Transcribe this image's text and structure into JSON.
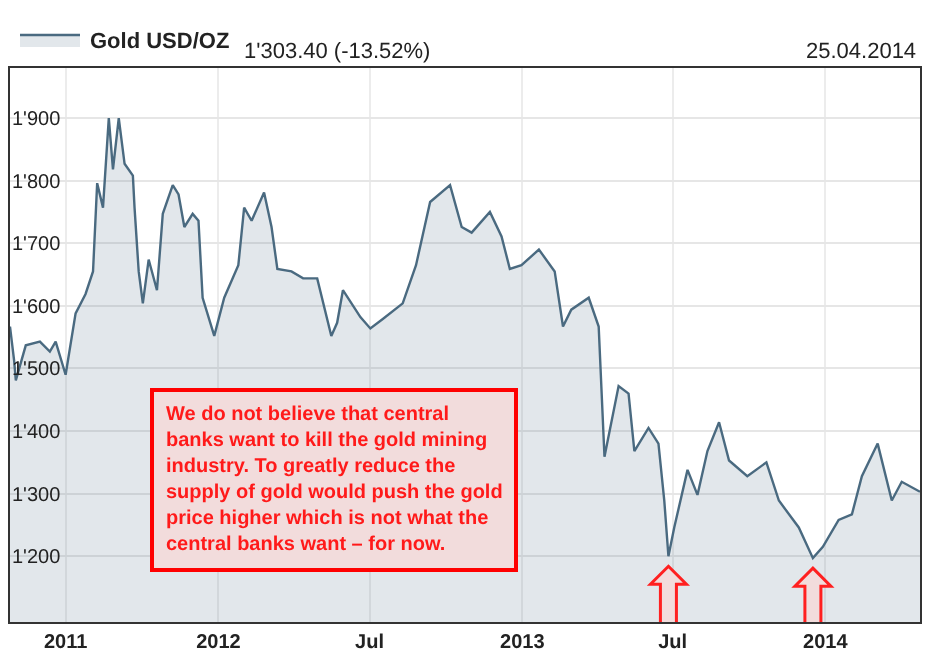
{
  "chart_data": {
    "type": "area",
    "annotations": [
      "1'303.40 (-13.52%)",
      "25.04.2014",
      "We do not believe that central banks want to kill the gold mining industry. To greatly reduce the supply of gold would push the gold price higher which is not what the central banks want – for now."
    ],
    "x": [
      "2011-04-25",
      "2011-04-30",
      "2011-05-02",
      "2011-05-14",
      "2011-05-31",
      "2011-06-12",
      "2011-06-19",
      "2011-07-01",
      "2011-07-13",
      "2011-07-25",
      "2011-08-03",
      "2011-08-08",
      "2011-08-15",
      "2011-08-22",
      "2011-08-27",
      "2011-09-03",
      "2011-09-10",
      "2011-09-20",
      "2011-09-22",
      "2011-09-27",
      "2011-10-02",
      "2011-10-09",
      "2011-10-19",
      "2011-10-26",
      "2011-11-07",
      "2011-11-14",
      "2011-11-21",
      "2011-12-01",
      "2011-12-08",
      "2011-12-13",
      "2011-12-27",
      "2012-01-08",
      "2012-01-25",
      "2012-02-01",
      "2012-02-10",
      "2012-02-25",
      "2012-03-05",
      "2012-03-12",
      "2012-03-29",
      "2012-04-12",
      "2012-04-29",
      "2012-05-16",
      "2012-05-23",
      "2012-05-30",
      "2012-06-20",
      "2012-07-02",
      "2012-07-17",
      "2012-08-10",
      "2012-08-26",
      "2012-09-12",
      "2012-10-06",
      "2012-10-20",
      "2012-11-01",
      "2012-11-23",
      "2012-12-07",
      "2012-12-17",
      "2012-12-31",
      "2013-01-21",
      "2013-02-09",
      "2013-02-19",
      "2013-03-01",
      "2013-03-22",
      "2013-04-03",
      "2013-04-10",
      "2013-04-27",
      "2013-05-09",
      "2013-05-16",
      "2013-06-02",
      "2013-06-14",
      "2013-06-21",
      "2013-06-26",
      "2013-07-03",
      "2013-07-19",
      "2013-07-31",
      "2013-08-12",
      "2013-08-26",
      "2013-09-07",
      "2013-09-29",
      "2013-10-22",
      "2013-11-06",
      "2013-11-30",
      "2013-12-17",
      "2013-12-29",
      "2014-01-17",
      "2014-02-02",
      "2014-02-14",
      "2014-03-05",
      "2014-03-22",
      "2014-04-03",
      "2014-04-25"
    ],
    "series": [
      {
        "name": "Gold USD/OZ",
        "color": "#4a6a80",
        "values": [
          1567,
          1512,
          1481,
          1537,
          1543,
          1527,
          1543,
          1490,
          1588,
          1619,
          1655,
          1796,
          1757,
          1900,
          1818,
          1900,
          1827,
          1808,
          1757,
          1655,
          1604,
          1674,
          1625,
          1747,
          1793,
          1778,
          1726,
          1747,
          1736,
          1613,
          1552,
          1613,
          1665,
          1757,
          1736,
          1781,
          1726,
          1659,
          1655,
          1644,
          1644,
          1552,
          1573,
          1625,
          1582,
          1564,
          1579,
          1604,
          1665,
          1766,
          1793,
          1726,
          1717,
          1750,
          1711,
          1659,
          1665,
          1690,
          1655,
          1567,
          1594,
          1613,
          1567,
          1359,
          1472,
          1460,
          1368,
          1405,
          1380,
          1289,
          1200,
          1246,
          1338,
          1298,
          1368,
          1414,
          1353,
          1328,
          1350,
          1289,
          1246,
          1197,
          1215,
          1258,
          1267,
          1328,
          1380,
          1289,
          1319,
          1303
        ]
      }
    ],
    "xlim": [
      "2011-04-25",
      "2014-04-25"
    ],
    "xticks": [
      {
        "value": "2011-07-01",
        "label": "2011"
      },
      {
        "value": "2012-01-01",
        "label": "2012"
      },
      {
        "value": "2012-07-01",
        "label": "Jul"
      },
      {
        "value": "2013-01-01",
        "label": "2013"
      },
      {
        "value": "2013-07-01",
        "label": "Jul"
      },
      {
        "value": "2014-01-01",
        "label": "2014"
      }
    ],
    "ylim": [
      1095,
      1980
    ],
    "yticks": [
      {
        "value": 1200,
        "label": "1'200"
      },
      {
        "value": 1300,
        "label": "1'300"
      },
      {
        "value": 1400,
        "label": "1'400"
      },
      {
        "value": 1500,
        "label": "1'500"
      },
      {
        "value": 1600,
        "label": "1'600"
      },
      {
        "value": 1700,
        "label": "1'700"
      },
      {
        "value": 1800,
        "label": "1'800"
      },
      {
        "value": 1900,
        "label": "1'900"
      }
    ],
    "grid": true,
    "legend": "top left",
    "marker": "none",
    "line_style": "solid"
  }
}
